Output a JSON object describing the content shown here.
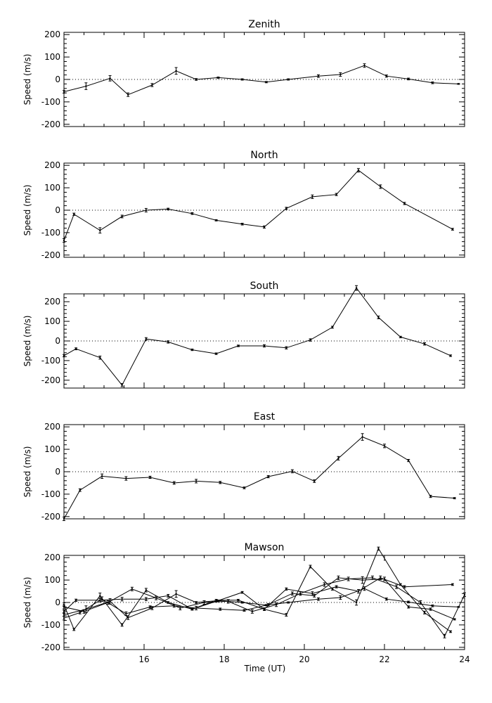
{
  "figure": {
    "xlabel": "Time (UT)",
    "x_ticks": [
      "16",
      "18",
      "20",
      "22",
      "24"
    ]
  },
  "chart_data": [
    {
      "type": "line",
      "title": "Zenith",
      "ylabel": "Speed (m/s)",
      "xlim": [
        14.0,
        24.0
      ],
      "ylim": [
        -210,
        210
      ],
      "y_ticks": [
        "200",
        "100",
        "0",
        "-100",
        "-200"
      ],
      "x_ticks": [
        "16",
        "18",
        "20",
        "22",
        "24"
      ],
      "zero_line": "dotted",
      "series": [
        {
          "x": [
            14.0,
            14.55,
            15.15,
            15.6,
            16.2,
            16.8,
            17.3,
            17.85,
            18.45,
            19.05,
            19.6,
            20.35,
            20.9,
            21.5,
            22.05,
            22.6,
            23.2,
            23.85
          ],
          "y": [
            -55,
            -30,
            5,
            -68,
            -25,
            38,
            0,
            8,
            0,
            -12,
            0,
            15,
            22,
            62,
            15,
            2,
            -15,
            -20
          ],
          "err": [
            6,
            15,
            12,
            8,
            7,
            15,
            4,
            3,
            3,
            3,
            3,
            6,
            8,
            8,
            5,
            4,
            4,
            2
          ]
        }
      ]
    },
    {
      "type": "line",
      "title": "North",
      "ylabel": "Speed (m/s)",
      "xlim": [
        14.0,
        24.0
      ],
      "ylim": [
        -210,
        210
      ],
      "y_ticks": [
        "200",
        "100",
        "0",
        "-100",
        "-200"
      ],
      "x_ticks": [
        "16",
        "18",
        "20",
        "22",
        "24"
      ],
      "zero_line": "dotted",
      "series": [
        {
          "x": [
            14.0,
            14.25,
            14.9,
            15.45,
            16.05,
            16.6,
            17.2,
            17.8,
            18.45,
            19.0,
            19.55,
            20.2,
            20.8,
            21.35,
            21.9,
            22.5,
            23.7
          ],
          "y": [
            -135,
            -18,
            -90,
            -28,
            0,
            5,
            -15,
            -45,
            -62,
            -75,
            8,
            60,
            70,
            178,
            105,
            30,
            -85
          ],
          "err": [
            8,
            5,
            12,
            6,
            8,
            4,
            4,
            3,
            4,
            5,
            5,
            8,
            5,
            8,
            8,
            5,
            4
          ]
        }
      ]
    },
    {
      "type": "line",
      "title": "South",
      "ylabel": "Speed (m/s)",
      "xlim": [
        14.0,
        24.0
      ],
      "ylim": [
        -240,
        240
      ],
      "y_ticks": [
        "200",
        "100",
        "0",
        "-100",
        "-200"
      ],
      "x_ticks": [
        "16",
        "18",
        "20",
        "22",
        "24"
      ],
      "zero_line": "dotted",
      "series": [
        {
          "x": [
            14.0,
            14.3,
            14.9,
            15.45,
            16.05,
            16.6,
            17.2,
            17.8,
            18.35,
            19.0,
            19.55,
            20.15,
            20.7,
            21.3,
            21.85,
            22.4,
            23.0,
            23.65
          ],
          "y": [
            -75,
            -40,
            -85,
            -225,
            10,
            -5,
            -45,
            -65,
            -25,
            -25,
            -35,
            5,
            70,
            270,
            120,
            20,
            -15,
            -75
          ],
          "err": [
            6,
            5,
            8,
            8,
            7,
            6,
            4,
            4,
            4,
            6,
            6,
            6,
            5,
            12,
            7,
            4,
            6,
            4
          ]
        }
      ]
    },
    {
      "type": "line",
      "title": "East",
      "ylabel": "Speed (m/s)",
      "xlim": [
        14.0,
        24.0
      ],
      "ylim": [
        -210,
        210
      ],
      "y_ticks": [
        "200",
        "100",
        "0",
        "-100",
        "-200"
      ],
      "x_ticks": [
        "16",
        "18",
        "20",
        "22",
        "24"
      ],
      "zero_line": "dotted",
      "series": [
        {
          "x": [
            14.0,
            14.4,
            14.95,
            15.55,
            16.15,
            16.75,
            17.3,
            17.9,
            18.5,
            19.1,
            19.7,
            20.25,
            20.85,
            21.45,
            22.0,
            22.6,
            23.15,
            23.75
          ],
          "y": [
            -210,
            -82,
            -20,
            -30,
            -25,
            -50,
            -42,
            -48,
            -72,
            -22,
            2,
            -42,
            60,
            155,
            115,
            50,
            -110,
            -118
          ],
          "err": [
            8,
            6,
            10,
            8,
            5,
            6,
            8,
            5,
            4,
            5,
            7,
            6,
            8,
            15,
            8,
            5,
            5,
            3
          ]
        }
      ]
    },
    {
      "type": "line",
      "title": "Mawson",
      "ylabel": "Speed (m/s)",
      "xlim": [
        14.0,
        24.0
      ],
      "ylim": [
        -210,
        210
      ],
      "y_ticks": [
        "200",
        "100",
        "0",
        "-100",
        "-200"
      ],
      "x_ticks": [
        "16",
        "18",
        "20",
        "22",
        "24"
      ],
      "zero_line": "dotted",
      "series": [
        {
          "x": [
            14.0,
            14.55,
            15.15,
            15.6,
            16.2,
            16.8,
            17.3,
            17.85,
            18.45,
            19.05,
            19.6,
            20.35,
            20.9,
            21.5,
            22.05,
            22.6,
            23.2,
            23.85
          ],
          "y": [
            -55,
            -30,
            5,
            -68,
            -25,
            38,
            0,
            8,
            0,
            -12,
            0,
            15,
            22,
            62,
            15,
            2,
            -15,
            -20
          ],
          "err": [
            6,
            15,
            12,
            8,
            7,
            15,
            4,
            3,
            3,
            3,
            3,
            6,
            8,
            8,
            5,
            4,
            4,
            2
          ]
        },
        {
          "x": [
            14.0,
            14.25,
            14.9,
            15.45,
            16.05,
            16.6,
            17.2,
            17.8,
            18.45,
            19.0,
            19.55,
            20.2,
            20.8,
            21.35,
            21.9,
            22.5,
            23.7
          ],
          "y": [
            -10,
            -120,
            30,
            -100,
            55,
            0,
            -30,
            5,
            45,
            -30,
            60,
            40,
            70,
            50,
            110,
            70,
            80
          ],
          "err": [
            8,
            5,
            12,
            6,
            8,
            4,
            4,
            3,
            4,
            5,
            5,
            8,
            5,
            8,
            8,
            5,
            4
          ]
        },
        {
          "x": [
            14.0,
            14.3,
            14.9,
            15.45,
            16.05,
            16.6,
            17.2,
            17.8,
            18.35,
            19.0,
            19.55,
            20.15,
            20.7,
            21.3,
            21.85,
            22.4,
            23.0,
            23.65
          ],
          "y": [
            -40,
            10,
            10,
            15,
            15,
            30,
            -30,
            10,
            10,
            -30,
            -55,
            160,
            60,
            0,
            240,
            80,
            -45,
            -130
          ],
          "err": [
            6,
            5,
            8,
            8,
            7,
            6,
            4,
            4,
            4,
            6,
            6,
            6,
            5,
            12,
            7,
            4,
            6,
            4
          ]
        },
        {
          "x": [
            14.0,
            14.4,
            14.95,
            15.55,
            16.15,
            16.75,
            17.3,
            17.9,
            18.5,
            19.1,
            19.7,
            20.25,
            20.85,
            21.45,
            22.0,
            22.6,
            23.15,
            23.75
          ],
          "y": [
            -70,
            -45,
            15,
            -50,
            -20,
            -15,
            -25,
            -30,
            -35,
            -10,
            40,
            30,
            110,
            100,
            105,
            -20,
            -30,
            -75
          ],
          "err": [
            8,
            6,
            10,
            8,
            5,
            6,
            8,
            5,
            4,
            5,
            7,
            6,
            8,
            15,
            8,
            5,
            5,
            3
          ]
        },
        {
          "x": [
            14.0,
            14.5,
            15.1,
            15.7,
            16.3,
            16.9,
            17.5,
            18.1,
            18.7,
            19.3,
            19.9,
            20.5,
            21.1,
            21.7,
            22.3,
            22.9,
            23.5,
            24.0
          ],
          "y": [
            -20,
            -40,
            0,
            60,
            20,
            -25,
            0,
            5,
            -40,
            -10,
            40,
            80,
            105,
            110,
            70,
            0,
            -150,
            35
          ],
          "err": [
            8,
            8,
            8,
            8,
            8,
            8,
            8,
            8,
            8,
            8,
            8,
            8,
            8,
            8,
            8,
            8,
            8,
            8
          ]
        }
      ]
    }
  ]
}
